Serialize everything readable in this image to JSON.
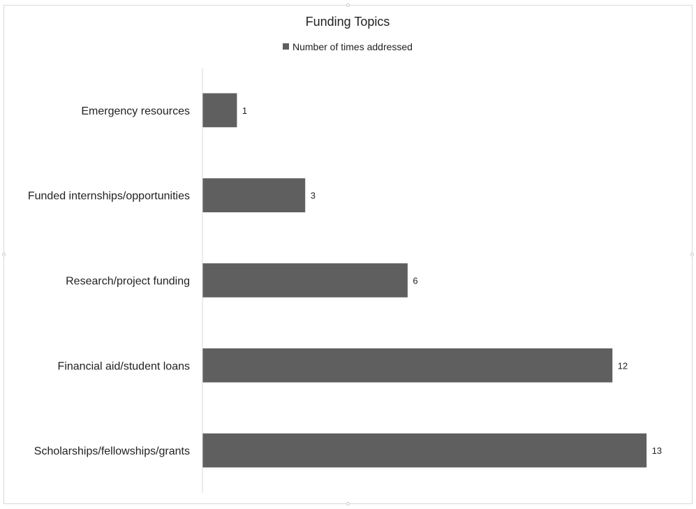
{
  "chart_data": {
    "type": "bar",
    "orientation": "horizontal",
    "title": "Funding Topics",
    "categories": [
      "Emergency resources",
      "Funded internships/opportunities",
      "Research/project funding",
      "Financial aid/student loans",
      "Scholarships/fellowships/grants"
    ],
    "series": [
      {
        "name": "Number of times addressed",
        "values": [
          1,
          3,
          6,
          12,
          13
        ],
        "color": "#5f5f5f"
      }
    ],
    "data_labels": true,
    "legend_position": "top",
    "grid": false
  }
}
